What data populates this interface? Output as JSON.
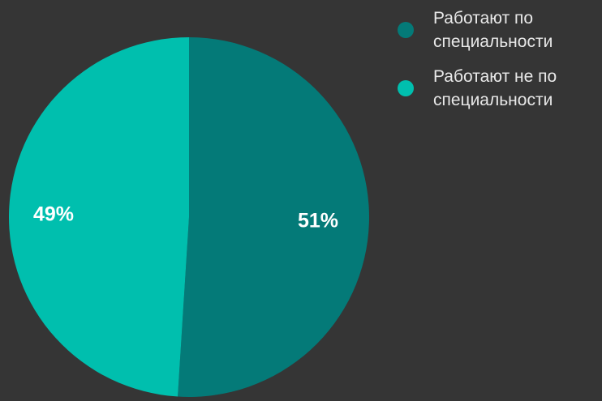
{
  "chart_data": {
    "type": "pie",
    "slices": [
      {
        "label": "Работают по специальности",
        "value": 51,
        "display": "51%",
        "color": "#047a78"
      },
      {
        "label": "Работают не по специальности",
        "value": 49,
        "display": "49%",
        "color": "#00bfae"
      }
    ],
    "legend_position": "top-right"
  }
}
